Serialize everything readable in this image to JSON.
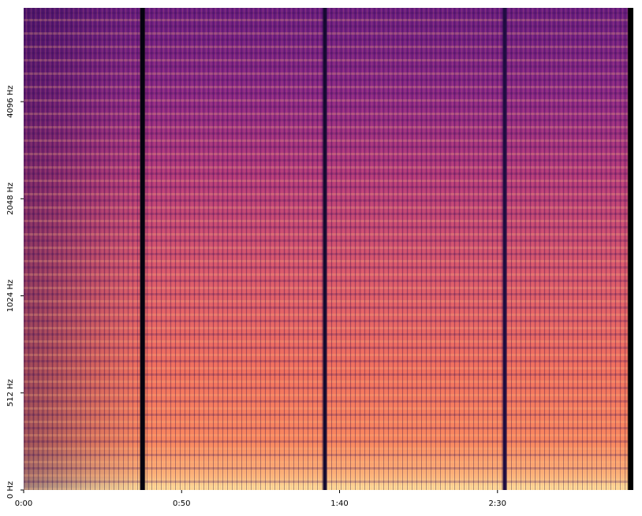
{
  "chart_data": {
    "type": "spectrogram",
    "xlim": [
      0,
      193
    ],
    "xticks": [
      {
        "value": 0,
        "label": "0:00"
      },
      {
        "value": 50,
        "label": "0:50"
      },
      {
        "value": 100,
        "label": "1:40"
      },
      {
        "value": 150,
        "label": "2:30"
      }
    ],
    "ylim": [
      0,
      8000
    ],
    "y_scale": "symlog",
    "linthresh": 512,
    "yticks": [
      {
        "value": 0,
        "label": "0 Hz"
      },
      {
        "value": 512,
        "label": "512 Hz"
      },
      {
        "value": 1024,
        "label": "1024 Hz"
      },
      {
        "value": 2048,
        "label": "2048 Hz"
      },
      {
        "value": 4096,
        "label": "4096 Hz"
      }
    ],
    "colormap": "magma"
  }
}
